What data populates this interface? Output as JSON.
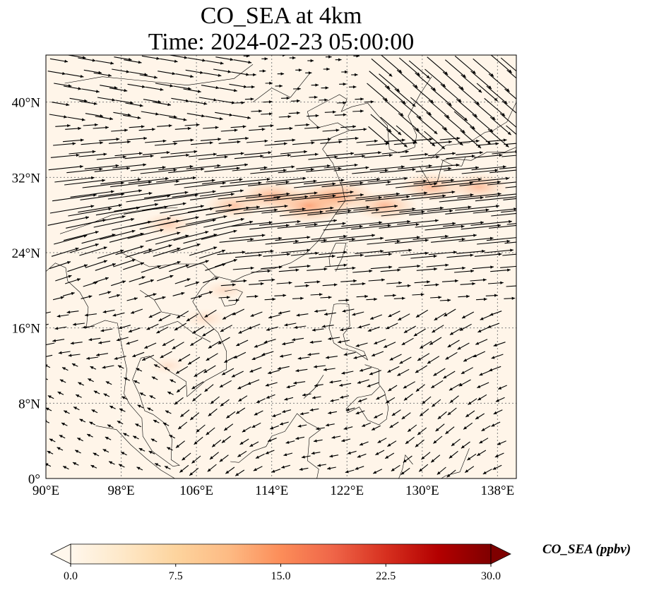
{
  "title": {
    "line1": "CO_SEA at 4km",
    "line2": "Time: 2024-02-23 05:00:00"
  },
  "map": {
    "projection": "PlateCarree",
    "lon_range": [
      90,
      140
    ],
    "lat_range": [
      0,
      45
    ],
    "gridlines": "dotted",
    "x_ticks": [
      {
        "value": 90,
        "label": "90°E"
      },
      {
        "value": 98,
        "label": "98°E"
      },
      {
        "value": 106,
        "label": "106°E"
      },
      {
        "value": 114,
        "label": "114°E"
      },
      {
        "value": 122,
        "label": "122°E"
      },
      {
        "value": 130,
        "label": "130°E"
      },
      {
        "value": 138,
        "label": "138°E"
      }
    ],
    "y_ticks": [
      {
        "value": 0,
        "label": "0°"
      },
      {
        "value": 8,
        "label": "8°N"
      },
      {
        "value": 16,
        "label": "16°N"
      },
      {
        "value": 24,
        "label": "24°N"
      },
      {
        "value": 32,
        "label": "32°N"
      },
      {
        "value": 40,
        "label": "40°N"
      }
    ],
    "field": "CO_SEA concentration (filled) with wind vectors (quiver)",
    "highlights": [
      {
        "lon": 103,
        "lat": 27,
        "value": 8
      },
      {
        "lon": 110,
        "lat": 29,
        "value": 10
      },
      {
        "lon": 114,
        "lat": 30,
        "value": 13
      },
      {
        "lon": 118,
        "lat": 29,
        "value": 16
      },
      {
        "lon": 121,
        "lat": 30,
        "value": 15
      },
      {
        "lon": 126,
        "lat": 29,
        "value": 12
      },
      {
        "lon": 131,
        "lat": 31,
        "value": 12
      },
      {
        "lon": 136,
        "lat": 31,
        "value": 11
      },
      {
        "lon": 109,
        "lat": 20,
        "value": 5
      },
      {
        "lon": 107,
        "lat": 17,
        "value": 5
      },
      {
        "lon": 103,
        "lat": 12,
        "value": 4
      }
    ]
  },
  "colorbar": {
    "label": "CO_SEA (ppbv)",
    "min": 0,
    "max": 30,
    "extend": "both",
    "colormap": "OrRd",
    "colors": [
      "#fff7ec",
      "#fee8c8",
      "#fdd49e",
      "#fdbb84",
      "#fc8d59",
      "#ef6548",
      "#d7301f",
      "#b30000",
      "#7f0000"
    ],
    "ticks": [
      {
        "value": 0,
        "label": "0.0"
      },
      {
        "value": 7.5,
        "label": "7.5"
      },
      {
        "value": 15,
        "label": "15.0"
      },
      {
        "value": 22.5,
        "label": "22.5"
      },
      {
        "value": 30,
        "label": "30.0"
      }
    ]
  }
}
